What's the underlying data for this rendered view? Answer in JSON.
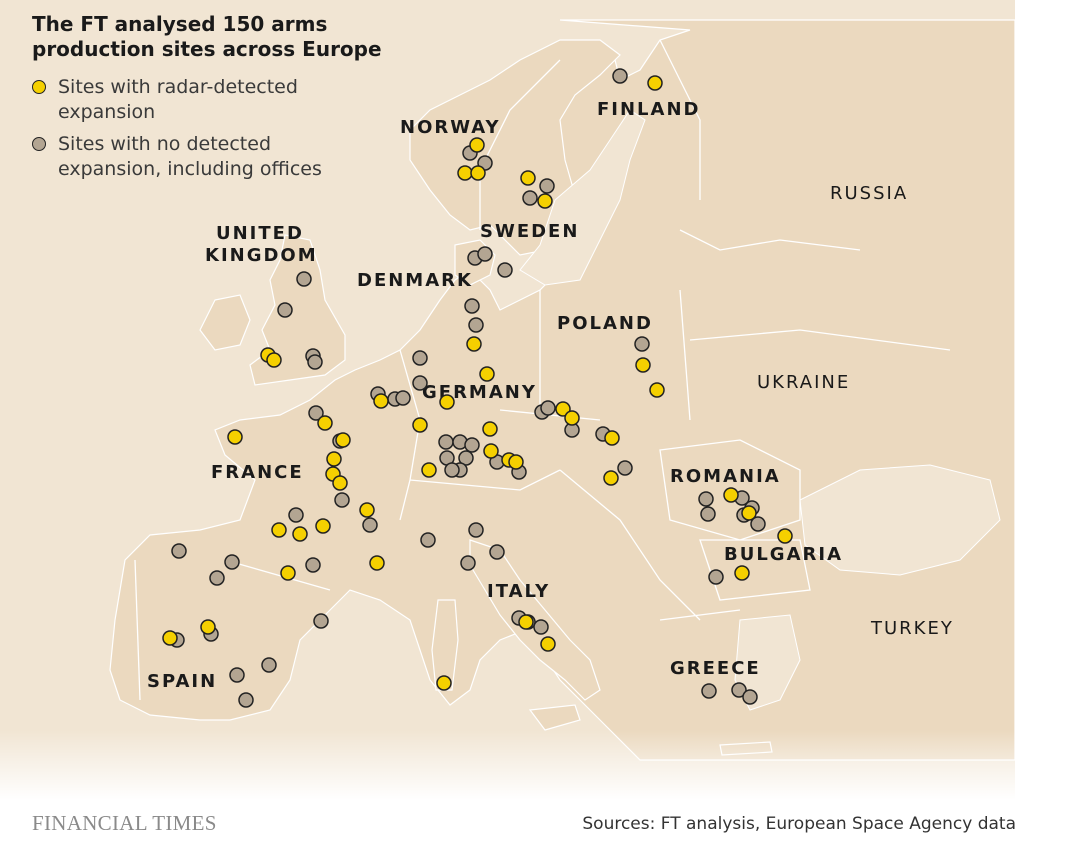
{
  "title": "The FT analysed 150 arms production sites across Europe",
  "legend": [
    {
      "label": "Sites with radar-detected expansion",
      "color": "#f5d000"
    },
    {
      "label": "Sites with no detected expansion, including offices",
      "color": "#b3a592"
    }
  ],
  "colors": {
    "background": "#f1e5d3",
    "land": "#ebd9bf",
    "sea": "#f1e5d3",
    "border": "#ffffff",
    "expansion": "#f5d000",
    "no_expansion": "#b3a592",
    "outline": "#222222"
  },
  "countries": [
    "FINLAND",
    "NORWAY",
    "SWEDEN",
    "RUSSIA",
    "UNITED KINGDOM",
    "DENMARK",
    "POLAND",
    "GERMANY",
    "UKRAINE",
    "FRANCE",
    "ROMANIA",
    "BULGARIA",
    "ITALY",
    "TURKEY",
    "SPAIN",
    "GREECE"
  ],
  "site_counts": {
    "total": 150
  },
  "logo": "FINANCIAL TIMES",
  "source": "Sources: FT analysis, European Space Agency data"
}
